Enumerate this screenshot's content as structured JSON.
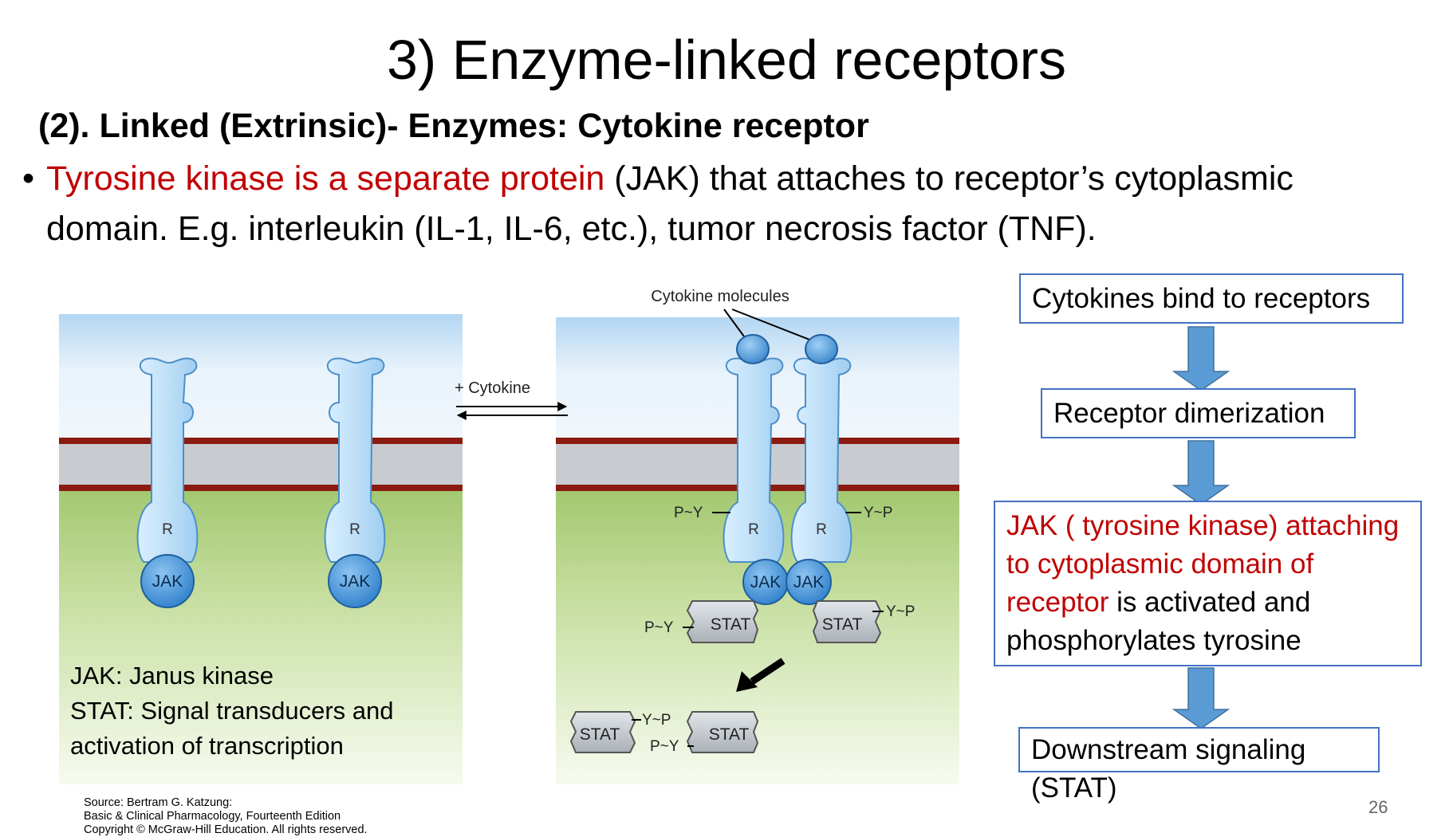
{
  "slide": {
    "title": "3) Enzyme-linked receptors",
    "subtitle": "(2). Linked (Extrinsic)- Enzymes: Cytokine receptor",
    "bullet": {
      "marker": "•",
      "highlight": "Tyrosine kinase is a separate protein",
      "line1_rest": " (JAK) that attaches to receptor’s cytoplasmic",
      "line2": "domain. E.g. interleukin (IL-1, IL-6, etc.), tumor necrosis factor (TNF)."
    },
    "page_number": "26"
  },
  "figure": {
    "cytokine_label": "Cytokine molecules",
    "plus_cytokine": "+ Cytokine",
    "receptor_label": "R",
    "jak_label": "JAK",
    "stat_label": "STAT",
    "py_label": "P~Y",
    "yp_label": "Y~P",
    "legend": {
      "line1": "JAK: Janus kinase",
      "line2": "STAT: Signal transducers and",
      "line3": "activation of transcription"
    },
    "source": {
      "line1": "Source: Bertram G. Katzung:",
      "line2": "Basic & Clinical Pharmacology, Fourteenth Edition",
      "line3": "Copyright © McGraw-Hill Education. All rights reserved."
    }
  },
  "flow": {
    "step1": "Cytokines bind to receptors",
    "step2": "Receptor dimerization",
    "step3_red": "JAK ( tyrosine kinase) attaching to cytoplasmic domain of receptor",
    "step3_rest": " is activated and phosphorylates tyrosine",
    "step4": "Downstream signaling (STAT)"
  },
  "colors": {
    "accent_red": "#c00000",
    "box_border": "#4472c4",
    "arrow_fill": "#5b9bd5",
    "membrane_red": "#8b1a10",
    "membrane_gray": "#c8ccd0",
    "sky": "#b9d8f0",
    "green": "#9fc66e",
    "receptor": "#bfe0f8",
    "jak": "#3d8fd6"
  }
}
